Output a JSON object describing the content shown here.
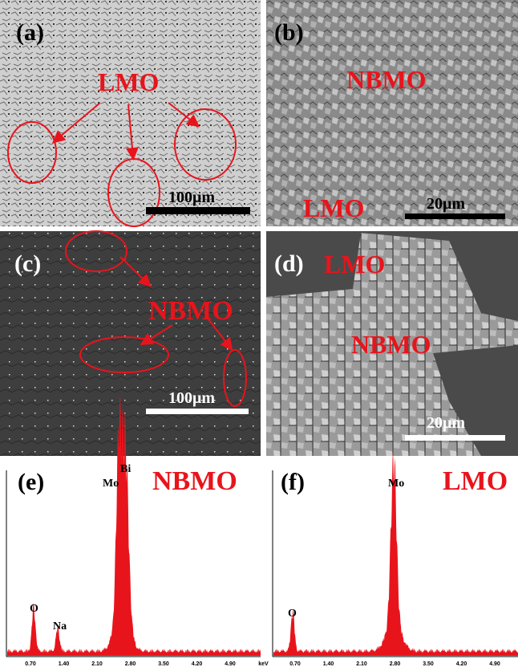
{
  "panels": [
    {
      "label": "(a)",
      "annotations": [
        "LMO"
      ],
      "scale_bar": "100μm"
    },
    {
      "label": "(b)",
      "annotations": [
        "NBMO",
        "LMO"
      ],
      "scale_bar": "20μm"
    },
    {
      "label": "(c)",
      "annotations": [
        "NBMO"
      ],
      "scale_bar": "100μm"
    },
    {
      "label": "(d)",
      "annotations": [
        "LMO",
        "NBMO"
      ],
      "scale_bar": "20μm"
    }
  ],
  "spectra": [
    {
      "label": "(e)",
      "title": "NBMO",
      "peaks": [
        "Bi",
        "Mo",
        "O",
        "Na"
      ],
      "axis_ticks": [
        "0.70",
        "1.40",
        "2.10",
        "2.80",
        "3.50",
        "4.20",
        "4.90",
        "keV"
      ]
    },
    {
      "label": "(f)",
      "title": "LMO",
      "peaks": [
        "Mo",
        "O"
      ],
      "axis_ticks": [
        "0.70",
        "1.40",
        "2.10",
        "2.80",
        "3.50",
        "4.20",
        "4.90",
        "keV"
      ]
    }
  ]
}
